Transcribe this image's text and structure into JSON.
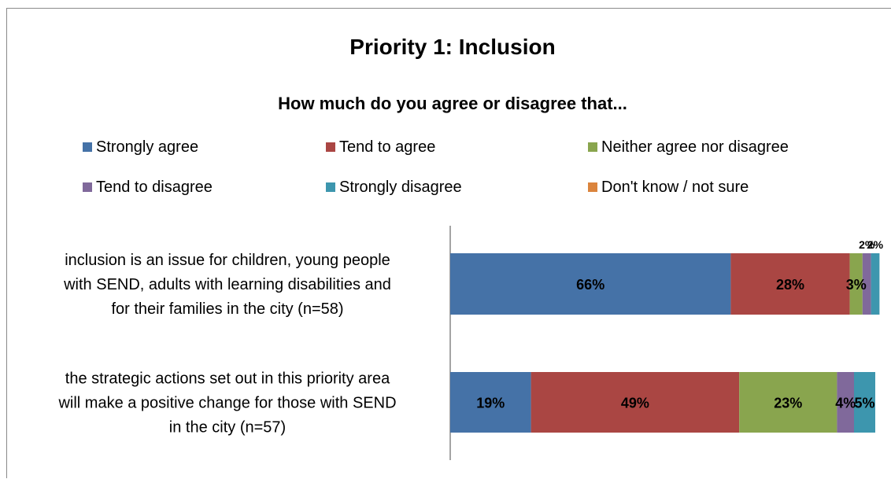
{
  "chart_data": {
    "type": "bar",
    "orientation": "horizontal",
    "stacked": true,
    "title": "Priority 1: Inclusion",
    "subtitle": "How much do you agree or disagree that...",
    "legend_position": "top",
    "xlim": [
      0,
      100
    ],
    "grid": false,
    "categories": [
      [
        "inclusion is an issue for children, young people",
        "with SEND, adults with learning disabilities and",
        "for their families in the city (n=58)"
      ],
      [
        "the strategic actions set out in this priority area",
        "will make a positive change for those with SEND",
        "in the city (n=57)"
      ]
    ],
    "series": [
      {
        "name": "Strongly agree",
        "color": "#4572A7",
        "values": [
          66,
          19
        ],
        "labels": [
          "66%",
          "19%"
        ]
      },
      {
        "name": "Tend to agree",
        "color": "#AA4643",
        "values": [
          28,
          49
        ],
        "labels": [
          "28%",
          "49%"
        ]
      },
      {
        "name": "Neither agree nor disagree",
        "color": "#89A54E",
        "values": [
          3,
          23
        ],
        "labels": [
          "3%",
          "23%"
        ]
      },
      {
        "name": "Tend to disagree",
        "color": "#80699B",
        "values": [
          2,
          4
        ],
        "labels": [
          "2%",
          "4%"
        ]
      },
      {
        "name": "Strongly disagree",
        "color": "#3D96AE",
        "values": [
          2,
          5
        ],
        "labels": [
          "2%",
          "5%"
        ]
      },
      {
        "name": "Don't know / not sure",
        "color": "#DB843D",
        "values": [
          0,
          0
        ],
        "labels": [
          "",
          ""
        ]
      }
    ]
  }
}
